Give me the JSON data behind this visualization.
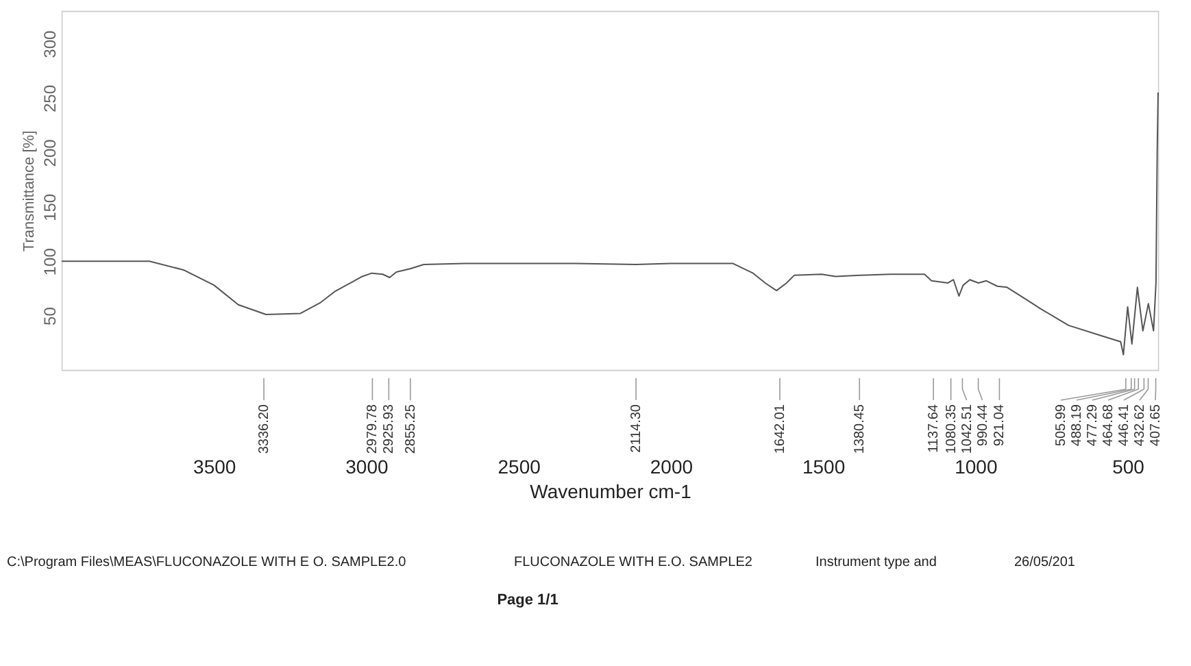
{
  "chart_data": {
    "type": "line",
    "xlabel": "Wavenumber cm-1",
    "ylabel": "Transmittance [%]",
    "xlim": [
      4000,
      400
    ],
    "xticks": [
      3500,
      3000,
      2500,
      2000,
      1500,
      1000,
      500
    ],
    "ylim": [
      0,
      330
    ],
    "yticks": [
      50,
      100,
      150,
      200,
      250,
      300
    ],
    "grid": false,
    "legend": false,
    "line_style": "solid",
    "marker": "none",
    "x": [
      4000,
      3800,
      3712,
      3600,
      3500,
      3420,
      3329,
      3216,
      3150,
      3104,
      3013,
      2982,
      2946,
      2923,
      2901,
      2856,
      2811,
      2676,
      2315,
      2114,
      2000,
      1797,
      1730,
      1690,
      1653,
      1620,
      1595,
      1505,
      1459,
      1380,
      1279,
      1167,
      1144,
      1090,
      1072,
      1054,
      1040,
      1018,
      990,
      964,
      928,
      896,
      840,
      784,
      694,
      581,
      523,
      514,
      500,
      486,
      468,
      450,
      432,
      415,
      407,
      403,
      400
    ],
    "series": [
      {
        "color": "#555555",
        "values": [
          100,
          100,
          100,
          92,
          78,
          60,
          51,
          52,
          62,
          72,
          86,
          89,
          88,
          85,
          90,
          93,
          97,
          98,
          98,
          97,
          98,
          98,
          89,
          80,
          73,
          80,
          87,
          88,
          86,
          87,
          88,
          88,
          82,
          80,
          83,
          68,
          78,
          83,
          80,
          82,
          77,
          76,
          66,
          56,
          41,
          31,
          26,
          14,
          58,
          24,
          76,
          36,
          61,
          36,
          80,
          200,
          255
        ]
      }
    ],
    "annotations": [
      {
        "text": "3336.20",
        "x": 3336.2
      },
      {
        "text": "2979.78",
        "x": 2979.78
      },
      {
        "text": "2925.93",
        "x": 2925.93
      },
      {
        "text": "2855.25",
        "x": 2855.25
      },
      {
        "text": "2114.30",
        "x": 2114.3
      },
      {
        "text": "1642.01",
        "x": 1642.01
      },
      {
        "text": "1380.45",
        "x": 1380.45
      },
      {
        "text": "1137.64",
        "x": 1137.64
      },
      {
        "text": "1080.35",
        "x": 1080.35
      },
      {
        "text": "1042.51",
        "x": 1042.51
      },
      {
        "text": "990.44",
        "x": 990.44
      },
      {
        "text": "921.04",
        "x": 921.04
      },
      {
        "text": "505.99",
        "x": 505.99
      },
      {
        "text": "488.19",
        "x": 488.19
      },
      {
        "text": "477.29",
        "x": 477.29
      },
      {
        "text": "464.68",
        "x": 464.68
      },
      {
        "text": "446.41",
        "x": 446.41
      },
      {
        "text": "432.62",
        "x": 432.62
      },
      {
        "text": "407.65",
        "x": 407.65
      },
      "C:\\Program Files\\MEAS\\FLUCONAZOLE WITH E O. SAMPLE2.0",
      "FLUCONAZOLE WITH E.O. SAMPLE2",
      "Instrument type and",
      "26/05/201",
      "Page 1/1"
    ]
  }
}
